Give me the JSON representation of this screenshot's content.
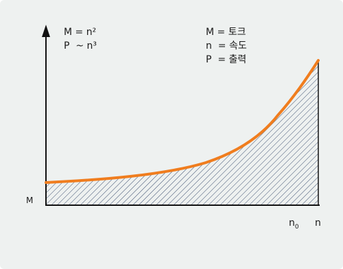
{
  "formula": {
    "line1": "M = n²",
    "line2": "P  ~ n³"
  },
  "legend": {
    "line1": "M = 토크",
    "line2": "n  = 속도",
    "line3": "P  = 출력"
  },
  "axis": {
    "y_origin_label": "M",
    "x_mark_label": "n",
    "x_mark_subscript": "0",
    "x_axis_label": "n"
  },
  "colors": {
    "background": "#eef1f0",
    "curve": "#f07d1e",
    "hatch": "#3a4d6e",
    "axis": "#111111"
  },
  "icons": {
    "y_axis_arrow": "arrow-up-icon"
  }
}
